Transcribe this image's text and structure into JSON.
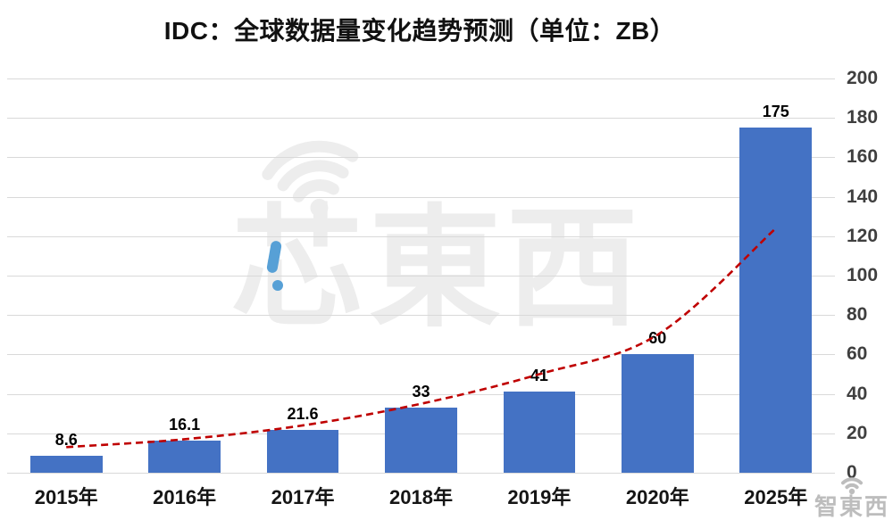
{
  "chart_data": {
    "type": "bar",
    "title": "IDC：全球数据量变化趋势预测（单位：ZB）",
    "categories": [
      "2015年",
      "2016年",
      "2017年",
      "2018年",
      "2019年",
      "2020年",
      "2025年"
    ],
    "values": [
      8.6,
      16.1,
      21.6,
      33,
      41,
      60,
      175
    ],
    "data_labels": [
      "8.6",
      "16.1",
      "21.6",
      "33",
      "41",
      "60",
      "175"
    ],
    "ylabel": "",
    "xlabel": "",
    "ylim": [
      0,
      200
    ],
    "yticks": [
      0,
      20,
      40,
      60,
      80,
      100,
      120,
      140,
      160,
      180,
      200
    ],
    "y_axis_position": "right",
    "grid": true,
    "legend": "none",
    "bar_color": "#4472C4",
    "grid_color": "#d9d9d9",
    "axis_label_color": "#3f3f3f",
    "trendline": {
      "type": "exponential",
      "style": "dashed",
      "color": "#bf0000",
      "values": [
        13,
        17,
        24,
        35,
        50,
        70,
        124
      ]
    }
  },
  "watermark": {
    "text": "芯東西",
    "icon": "wifi-icon",
    "accent_color": "#57a0d6"
  },
  "footer_logo": {
    "text": "智東西",
    "icon": "wifi-icon"
  }
}
